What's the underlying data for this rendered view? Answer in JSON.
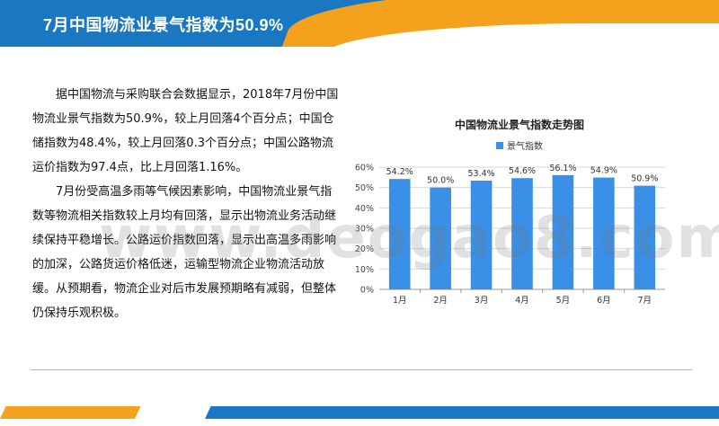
{
  "header": {
    "title": "7月中国物流业景气指数为50.9%"
  },
  "body": {
    "paragraphs": [
      "据中国物流与采购联合会数据显示，2018年7月份中国物流业景气指数为50.9%，较上月回落4个百分点；中国仓储指数为48.4%，较上月回落0.3个百分点；中国公路物流运价指数为97.4点，比上月回落1.16%。",
      "7月份受高温多雨等气候因素影响，中国物流业景气指数等物流相关指数较上月均有回落，显示出物流业务活动继续保持平稳增长。公路运价指数回落，显示出高温多雨影响的加深，公路货运价格低迷，运输型物流企业物流活动放缓。从预期看，物流企业对后市发展预期略有减弱，但整体仍保持乐观积极。"
    ]
  },
  "watermark": "www.deogao8.com",
  "colors": {
    "header_blue": "#1a78c2",
    "header_orange": "#f4a11d",
    "bar": "#3a8fe6"
  },
  "chart_data": {
    "type": "bar",
    "title": "中国物流业景气指数走势图",
    "categories": [
      "1月",
      "2月",
      "3月",
      "4月",
      "5月",
      "6月",
      "7月"
    ],
    "series": [
      {
        "name": "景气指数",
        "values": [
          54.2,
          50.0,
          53.4,
          54.6,
          56.1,
          54.9,
          50.9
        ]
      }
    ],
    "data_labels": [
      "54.2%",
      "50.0%",
      "53.4%",
      "54.6%",
      "56.1%",
      "54.9%",
      "50.9%"
    ],
    "y_ticks": [
      "0%",
      "10%",
      "20%",
      "30%",
      "40%",
      "50%",
      "60%"
    ],
    "ylim": [
      0,
      60
    ],
    "grid": true,
    "legend": "top-center"
  }
}
